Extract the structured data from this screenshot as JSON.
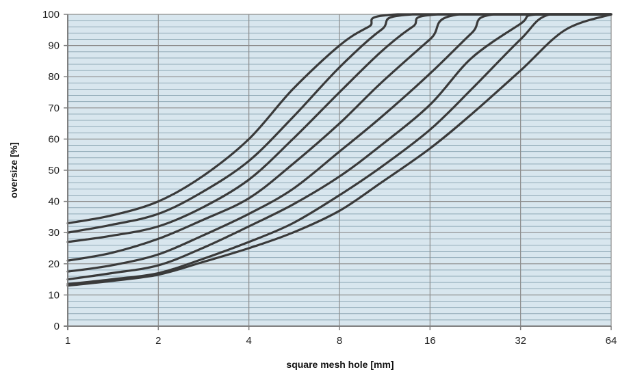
{
  "colors": {
    "plot_background": "#d8e6ee",
    "minor_gridline": "#8fa9b6",
    "major_gridline": "#8c8c8c",
    "axis": "#7f7f7f",
    "series_line": "#3a3a3a"
  },
  "chart_data": {
    "type": "line",
    "title": "",
    "xlabel": "square mesh hole [mm]",
    "ylabel": "oversize [%]",
    "x_scale": "log2",
    "xlim": [
      1,
      64
    ],
    "ylim": [
      0,
      100
    ],
    "x_ticks": [
      1,
      2,
      4,
      8,
      16,
      32,
      64
    ],
    "x_tick_labels": [
      "1",
      "2",
      "4",
      "8",
      "16",
      "32",
      "64"
    ],
    "y_ticks": [
      0,
      10,
      20,
      30,
      40,
      50,
      60,
      70,
      80,
      90,
      100
    ],
    "y_tick_labels": [
      "0",
      "10",
      "20",
      "30",
      "40",
      "50",
      "60",
      "70",
      "80",
      "90",
      "100"
    ],
    "y_minor_step": 2,
    "grid": true,
    "legend": "none",
    "series": [
      {
        "points": [
          [
            1,
            33
          ],
          [
            1.4,
            35.5
          ],
          [
            2,
            40
          ],
          [
            2.8,
            48
          ],
          [
            4,
            60
          ],
          [
            5.6,
            76
          ],
          [
            8,
            90
          ],
          [
            10,
            96
          ],
          [
            12.5,
            100
          ],
          [
            64,
            100
          ]
        ]
      },
      {
        "points": [
          [
            1,
            30
          ],
          [
            1.4,
            32.5
          ],
          [
            2,
            36
          ],
          [
            2.8,
            43
          ],
          [
            4,
            53
          ],
          [
            5.6,
            67
          ],
          [
            8,
            83
          ],
          [
            11,
            95
          ],
          [
            14,
            100
          ],
          [
            64,
            100
          ]
        ]
      },
      {
        "points": [
          [
            1,
            27
          ],
          [
            1.4,
            29
          ],
          [
            2,
            32
          ],
          [
            2.8,
            38
          ],
          [
            4,
            47
          ],
          [
            5.6,
            60
          ],
          [
            8,
            75
          ],
          [
            11,
            88
          ],
          [
            14,
            96
          ],
          [
            17,
            100
          ],
          [
            64,
            100
          ]
        ]
      },
      {
        "points": [
          [
            1,
            21
          ],
          [
            1.4,
            23.5
          ],
          [
            2,
            28
          ],
          [
            2.8,
            34
          ],
          [
            4,
            41
          ],
          [
            5.6,
            52
          ],
          [
            8,
            65
          ],
          [
            11,
            78
          ],
          [
            16,
            92
          ],
          [
            20,
            100
          ],
          [
            64,
            100
          ]
        ]
      },
      {
        "points": [
          [
            1,
            17.5
          ],
          [
            1.4,
            19.5
          ],
          [
            2,
            23
          ],
          [
            2.8,
            29
          ],
          [
            4,
            36
          ],
          [
            5.6,
            44
          ],
          [
            8,
            56
          ],
          [
            11,
            67
          ],
          [
            16,
            81
          ],
          [
            22,
            94
          ],
          [
            26,
            100
          ],
          [
            64,
            100
          ]
        ]
      },
      {
        "points": [
          [
            1,
            15
          ],
          [
            1.4,
            17
          ],
          [
            2,
            19.5
          ],
          [
            2.8,
            25
          ],
          [
            4,
            32
          ],
          [
            5.6,
            39
          ],
          [
            8,
            48
          ],
          [
            11,
            58
          ],
          [
            16,
            71
          ],
          [
            22,
            86
          ],
          [
            32,
            97
          ],
          [
            36,
            100
          ],
          [
            64,
            100
          ]
        ]
      },
      {
        "points": [
          [
            1,
            13.5
          ],
          [
            1.4,
            15
          ],
          [
            2,
            17
          ],
          [
            2.8,
            21.5
          ],
          [
            4,
            27
          ],
          [
            5.6,
            33
          ],
          [
            8,
            42
          ],
          [
            11,
            51
          ],
          [
            16,
            63
          ],
          [
            22,
            76
          ],
          [
            32,
            92
          ],
          [
            40,
            100
          ],
          [
            64,
            100
          ]
        ]
      },
      {
        "points": [
          [
            1,
            13
          ],
          [
            1.4,
            14.5
          ],
          [
            2,
            16.5
          ],
          [
            2.8,
            20.5
          ],
          [
            4,
            25
          ],
          [
            5.6,
            30
          ],
          [
            8,
            37
          ],
          [
            11,
            46
          ],
          [
            16,
            57
          ],
          [
            22,
            68
          ],
          [
            32,
            82
          ],
          [
            45,
            95
          ],
          [
            64,
            100
          ]
        ]
      }
    ]
  }
}
